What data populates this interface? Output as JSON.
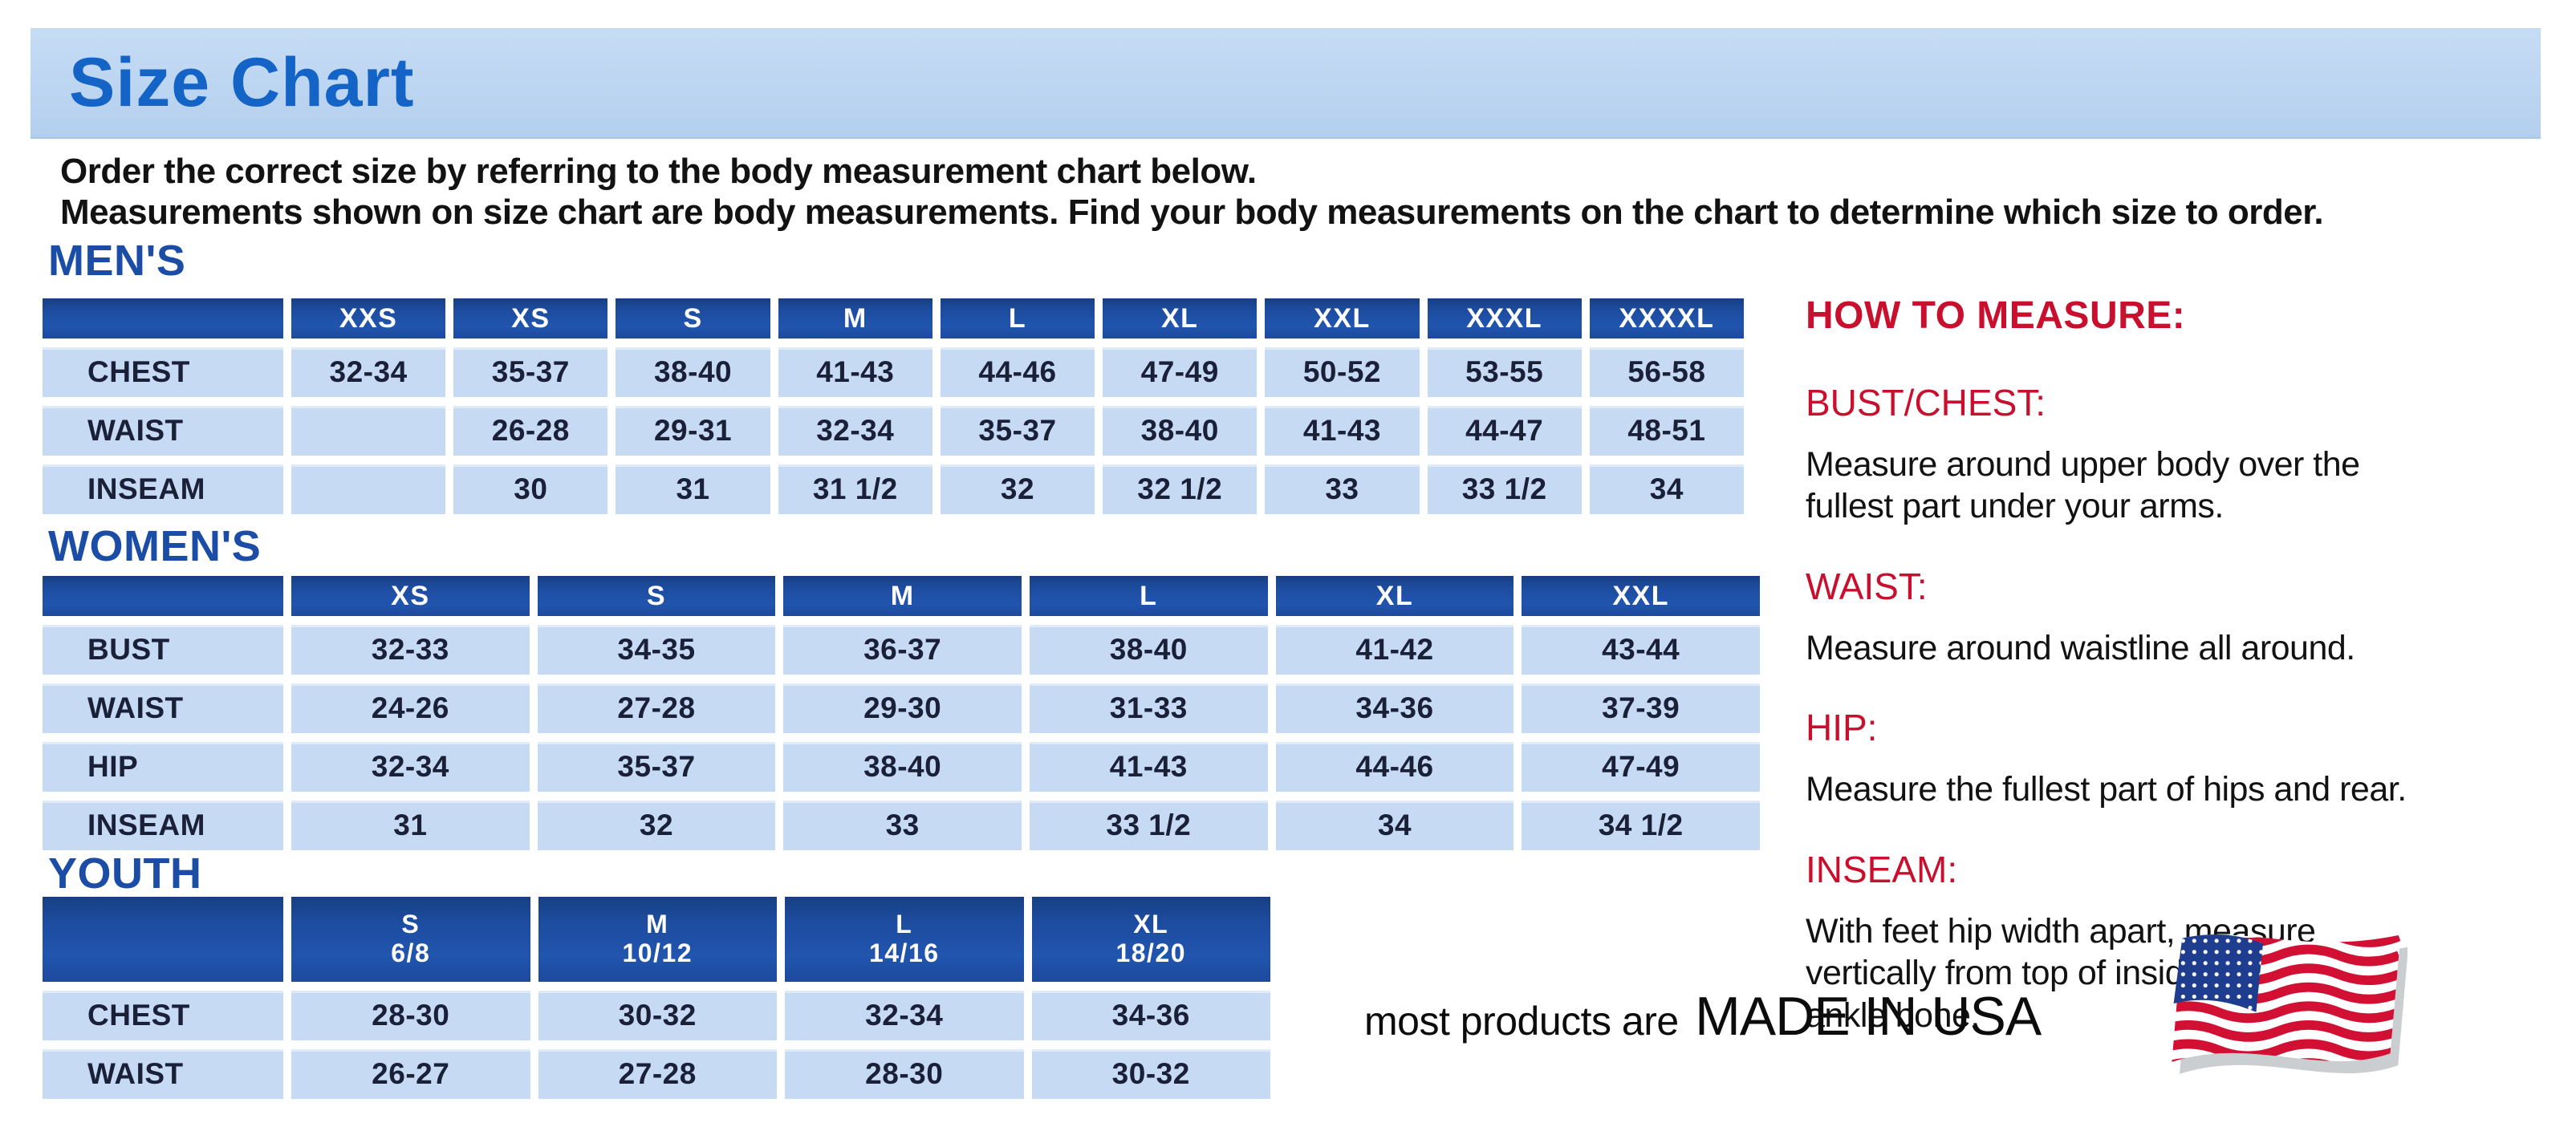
{
  "colors": {
    "banner_blue": "#bcd5f1",
    "title_blue": "#1463c7",
    "heading_blue": "#1c4da6",
    "table_header_blue": "#1d4ca0",
    "table_cell_blue": "#c7daf3",
    "accent_red": "#c8102e"
  },
  "page": {
    "title": "Size Chart",
    "intro_line1": "Order the correct size by referring to the body measurement chart below.",
    "intro_line2": "Measurements shown on size chart are body measurements.  Find your body measurements on the chart to determine which size to order."
  },
  "tables": {
    "mens": {
      "heading": "MEN'S",
      "columns": [
        "XXS",
        "XS",
        "S",
        "M",
        "L",
        "XL",
        "XXL",
        "XXXL",
        "XXXXL"
      ],
      "rows": [
        {
          "label": "CHEST",
          "values": [
            "32-34",
            "35-37",
            "38-40",
            "41-43",
            "44-46",
            "47-49",
            "50-52",
            "53-55",
            "56-58"
          ]
        },
        {
          "label": "WAIST",
          "values": [
            "",
            "26-28",
            "29-31",
            "32-34",
            "35-37",
            "38-40",
            "41-43",
            "44-47",
            "48-51"
          ]
        },
        {
          "label": "INSEAM",
          "values": [
            "",
            "30",
            "31",
            "31 1/2",
            "32",
            "32 1/2",
            "33",
            "33 1/2",
            "34"
          ]
        }
      ]
    },
    "womens": {
      "heading": "WOMEN'S",
      "columns": [
        "XS",
        "S",
        "M",
        "L",
        "XL",
        "XXL"
      ],
      "rows": [
        {
          "label": "BUST",
          "values": [
            "32-33",
            "34-35",
            "36-37",
            "38-40",
            "41-42",
            "43-44"
          ]
        },
        {
          "label": "WAIST",
          "values": [
            "24-26",
            "27-28",
            "29-30",
            "31-33",
            "34-36",
            "37-39"
          ]
        },
        {
          "label": "HIP",
          "values": [
            "32-34",
            "35-37",
            "38-40",
            "41-43",
            "44-46",
            "47-49"
          ]
        },
        {
          "label": "INSEAM",
          "values": [
            "31",
            "32",
            "33",
            "33 1/2",
            "34",
            "34 1/2"
          ]
        }
      ]
    },
    "youth": {
      "heading": "YOUTH",
      "columns": [
        {
          "size": "S",
          "range": "6/8"
        },
        {
          "size": "M",
          "range": "10/12"
        },
        {
          "size": "L",
          "range": "14/16"
        },
        {
          "size": "XL",
          "range": "18/20"
        }
      ],
      "rows": [
        {
          "label": "CHEST",
          "values": [
            "28-30",
            "30-32",
            "32-34",
            "34-36"
          ]
        },
        {
          "label": "WAIST",
          "values": [
            "26-27",
            "27-28",
            "28-30",
            "30-32"
          ]
        }
      ]
    }
  },
  "how_to_measure": {
    "heading": "HOW TO MEASURE:",
    "sections": [
      {
        "label": "BUST/CHEST:",
        "text": "Measure around upper body over the\nfullest part under your arms."
      },
      {
        "label": "WAIST:",
        "text": "Measure around waistline all around."
      },
      {
        "label": "HIP:",
        "text": "Measure the fullest part of hips and rear."
      },
      {
        "label": "INSEAM:",
        "text": "With feet hip width apart, measure\nvertically from top of inside leg to\nankle bone."
      }
    ]
  },
  "footer": {
    "prefix": "most products are",
    "emphasis": "MADE IN USA",
    "flag_icon": "usa-flag-icon"
  }
}
